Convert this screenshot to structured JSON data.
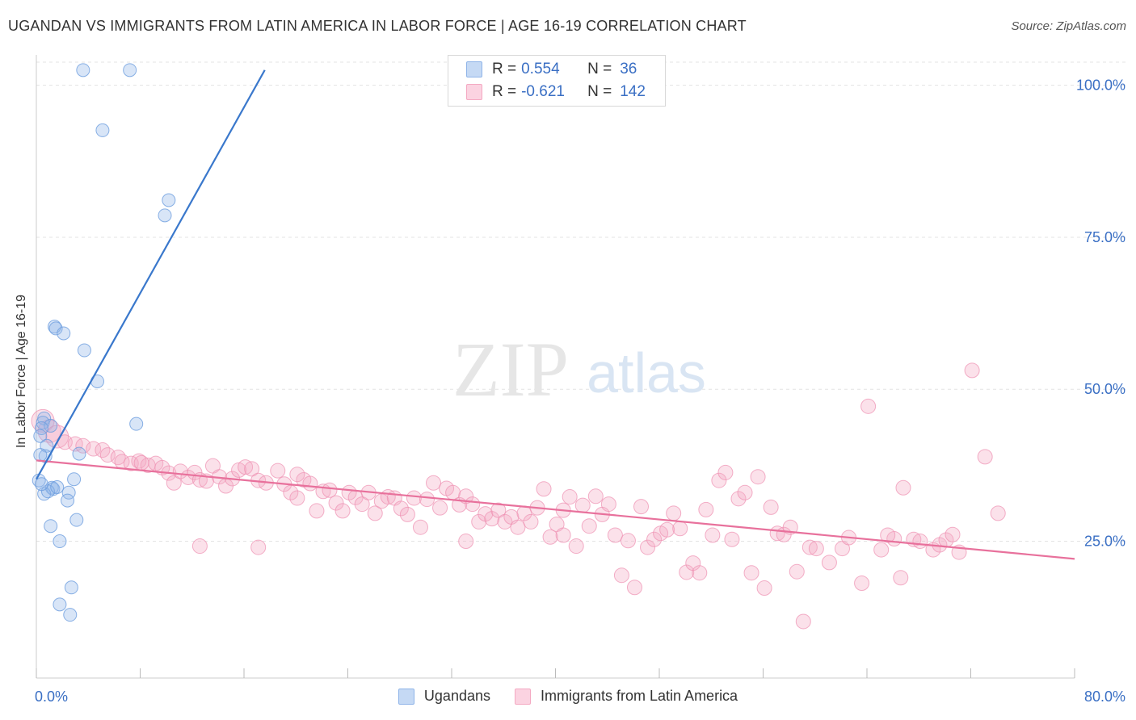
{
  "header": {
    "title": "UGANDAN VS IMMIGRANTS FROM LATIN AMERICA IN LABOR FORCE | AGE 16-19 CORRELATION CHART",
    "source": "Source: ZipAtlas.com"
  },
  "watermark": {
    "zip": "ZIP",
    "atlas": "atlas"
  },
  "legend": {
    "rows": [
      {
        "r_label": "R =",
        "r_value": "0.554",
        "n_label": "N =",
        "n_value": "36",
        "color": "#8fb4e8"
      },
      {
        "r_label": "R =",
        "r_value": "-0.621",
        "n_label": "N =",
        "n_value": "142",
        "color": "#f4a9c2"
      }
    ]
  },
  "bottom_legend": {
    "series1": "Ugandans",
    "series2": "Immigrants from Latin America"
  },
  "chart_data": {
    "type": "scatter",
    "ylabel": "In Labor Force | Age 16-19",
    "xlim": [
      0,
      80
    ],
    "ylim": [
      2.5,
      105
    ],
    "x_tick_labels": [
      "0.0%",
      "80.0%"
    ],
    "y_ticks": [
      25,
      50,
      75,
      100
    ],
    "y_tick_labels": [
      "25.0%",
      "50.0%",
      "75.0%",
      "100.0%"
    ],
    "grid": true,
    "series": [
      {
        "name": "Ugandans",
        "color": "#8fb4e8",
        "line_color": "#3a78cc",
        "trend": {
          "x": [
            0,
            17.6
          ],
          "y": [
            35.2,
            102.5
          ]
        },
        "points": [
          [
            3.6,
            102.5
          ],
          [
            7.2,
            102.5
          ],
          [
            5.1,
            92.6
          ],
          [
            10.2,
            81.1
          ],
          [
            9.9,
            78.6
          ],
          [
            1.4,
            60.3
          ],
          [
            1.5,
            60.0
          ],
          [
            2.1,
            59.2
          ],
          [
            3.7,
            56.4
          ],
          [
            4.7,
            51.3
          ],
          [
            0.6,
            45.2
          ],
          [
            0.5,
            44.5
          ],
          [
            1.1,
            44.0
          ],
          [
            7.7,
            44.3
          ],
          [
            0.4,
            43.6
          ],
          [
            0.3,
            42.3
          ],
          [
            0.8,
            40.7
          ],
          [
            3.3,
            39.4
          ],
          [
            0.7,
            39.0
          ],
          [
            0.3,
            39.2
          ],
          [
            2.9,
            35.2
          ],
          [
            1.2,
            33.8
          ],
          [
            1.3,
            33.6
          ],
          [
            0.6,
            32.8
          ],
          [
            2.5,
            33.0
          ],
          [
            2.4,
            31.7
          ],
          [
            1.1,
            27.5
          ],
          [
            3.1,
            28.5
          ],
          [
            1.8,
            25.0
          ],
          [
            2.7,
            17.4
          ],
          [
            1.8,
            14.6
          ],
          [
            2.6,
            12.9
          ],
          [
            0.2,
            35.0
          ],
          [
            0.9,
            33.2
          ],
          [
            0.4,
            34.4
          ],
          [
            1.6,
            33.9
          ]
        ]
      },
      {
        "name": "Immigrants from Latin America",
        "color": "#f4a9c2",
        "line_color": "#e8719c",
        "trend": {
          "x": [
            0,
            80
          ],
          "y": [
            38.3,
            22.1
          ]
        },
        "points": [
          [
            0.5,
            44.8
          ],
          [
            1.0,
            43.1
          ],
          [
            1.6,
            42.2
          ],
          [
            2.2,
            41.3
          ],
          [
            3.0,
            41.0
          ],
          [
            3.6,
            40.7
          ],
          [
            4.4,
            40.2
          ],
          [
            5.1,
            40.0
          ],
          [
            5.5,
            39.2
          ],
          [
            6.3,
            38.8
          ],
          [
            6.6,
            38.1
          ],
          [
            7.3,
            37.8
          ],
          [
            7.9,
            38.2
          ],
          [
            8.6,
            37.5
          ],
          [
            9.2,
            37.8
          ],
          [
            9.7,
            37.1
          ],
          [
            10.2,
            36.2
          ],
          [
            10.6,
            34.6
          ],
          [
            11.1,
            36.5
          ],
          [
            11.7,
            35.5
          ],
          [
            12.2,
            36.3
          ],
          [
            12.6,
            35.1
          ],
          [
            13.1,
            34.9
          ],
          [
            13.6,
            37.4
          ],
          [
            14.1,
            35.6
          ],
          [
            14.6,
            34.1
          ],
          [
            15.1,
            35.3
          ],
          [
            15.6,
            36.7
          ],
          [
            16.1,
            37.2
          ],
          [
            16.6,
            36.9
          ],
          [
            17.1,
            35.0
          ],
          [
            17.7,
            34.6
          ],
          [
            18.6,
            36.6
          ],
          [
            19.1,
            34.4
          ],
          [
            19.6,
            33.0
          ],
          [
            20.1,
            32.1
          ],
          [
            20.6,
            35.1
          ],
          [
            21.1,
            34.5
          ],
          [
            21.6,
            30.0
          ],
          [
            22.1,
            33.2
          ],
          [
            22.6,
            33.4
          ],
          [
            23.1,
            31.3
          ],
          [
            23.6,
            30.0
          ],
          [
            24.1,
            33.0
          ],
          [
            24.6,
            32.2
          ],
          [
            25.1,
            31.1
          ],
          [
            25.6,
            33.0
          ],
          [
            26.1,
            29.6
          ],
          [
            26.6,
            31.6
          ],
          [
            27.1,
            32.3
          ],
          [
            27.6,
            32.1
          ],
          [
            28.1,
            30.4
          ],
          [
            28.6,
            29.4
          ],
          [
            29.1,
            32.1
          ],
          [
            29.6,
            27.3
          ],
          [
            30.1,
            31.9
          ],
          [
            30.6,
            34.6
          ],
          [
            31.1,
            30.5
          ],
          [
            31.6,
            33.7
          ],
          [
            32.1,
            33.0
          ],
          [
            32.6,
            31.0
          ],
          [
            33.1,
            32.4
          ],
          [
            33.6,
            31.1
          ],
          [
            34.1,
            28.2
          ],
          [
            34.6,
            29.5
          ],
          [
            35.1,
            28.7
          ],
          [
            35.6,
            30.1
          ],
          [
            36.1,
            28.2
          ],
          [
            36.6,
            29.0
          ],
          [
            37.1,
            27.3
          ],
          [
            37.6,
            29.6
          ],
          [
            38.1,
            28.2
          ],
          [
            38.6,
            30.5
          ],
          [
            39.1,
            33.6
          ],
          [
            39.6,
            25.7
          ],
          [
            40.1,
            27.8
          ],
          [
            40.6,
            26.0
          ],
          [
            41.1,
            32.3
          ],
          [
            41.6,
            24.2
          ],
          [
            42.1,
            30.9
          ],
          [
            42.6,
            27.5
          ],
          [
            43.1,
            32.4
          ],
          [
            43.6,
            29.4
          ],
          [
            44.1,
            31.1
          ],
          [
            44.6,
            26.0
          ],
          [
            45.1,
            19.4
          ],
          [
            45.6,
            25.1
          ],
          [
            46.1,
            17.4
          ],
          [
            46.6,
            30.7
          ],
          [
            47.1,
            24.0
          ],
          [
            47.6,
            25.3
          ],
          [
            48.1,
            26.3
          ],
          [
            48.6,
            26.9
          ],
          [
            49.1,
            29.6
          ],
          [
            49.6,
            27.1
          ],
          [
            50.1,
            19.9
          ],
          [
            50.6,
            21.4
          ],
          [
            51.1,
            19.8
          ],
          [
            51.6,
            30.2
          ],
          [
            52.1,
            26.0
          ],
          [
            52.6,
            35.0
          ],
          [
            53.1,
            36.3
          ],
          [
            53.6,
            25.3
          ],
          [
            54.1,
            32.0
          ],
          [
            54.6,
            33.0
          ],
          [
            55.1,
            19.8
          ],
          [
            55.6,
            35.6
          ],
          [
            56.1,
            17.3
          ],
          [
            56.6,
            30.6
          ],
          [
            57.1,
            26.3
          ],
          [
            57.6,
            26.1
          ],
          [
            58.1,
            27.3
          ],
          [
            58.6,
            20.0
          ],
          [
            59.1,
            11.8
          ],
          [
            59.6,
            24.0
          ],
          [
            60.1,
            23.8
          ],
          [
            61.1,
            21.5
          ],
          [
            62.1,
            23.8
          ],
          [
            62.6,
            25.6
          ],
          [
            63.6,
            18.1
          ],
          [
            64.1,
            47.2
          ],
          [
            65.1,
            23.6
          ],
          [
            66.1,
            25.4
          ],
          [
            66.6,
            19.0
          ],
          [
            66.8,
            33.8
          ],
          [
            67.6,
            25.3
          ],
          [
            68.1,
            25.0
          ],
          [
            69.1,
            23.6
          ],
          [
            69.6,
            24.4
          ],
          [
            70.1,
            25.2
          ],
          [
            70.6,
            26.1
          ],
          [
            71.1,
            23.2
          ],
          [
            72.1,
            53.1
          ],
          [
            73.1,
            38.9
          ],
          [
            74.1,
            29.6
          ],
          [
            65.6,
            26.0
          ],
          [
            12.6,
            24.2
          ],
          [
            33.1,
            25.0
          ],
          [
            40.6,
            30.1
          ],
          [
            20.1,
            36.0
          ],
          [
            17.1,
            24.0
          ],
          [
            8.1,
            37.9
          ]
        ]
      }
    ]
  }
}
